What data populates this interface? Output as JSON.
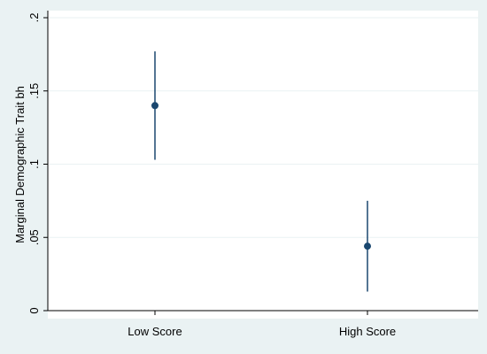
{
  "chart_data": {
    "type": "scatter",
    "categories": [
      "Low Score",
      "High Score"
    ],
    "series": [
      {
        "values": [
          0.14,
          0.044
        ],
        "ci_low": [
          0.103,
          0.013
        ],
        "ci_high": [
          0.177,
          0.075
        ]
      }
    ],
    "title": "",
    "xlabel": "",
    "ylabel": "Marginal Demographic Trait bh",
    "ylim": [
      0,
      0.2
    ],
    "yticks": [
      0,
      0.05,
      0.1,
      0.15,
      0.2
    ],
    "ytick_labels": [
      "0",
      ".05",
      ".1",
      ".15",
      ".2"
    ],
    "grid": true
  },
  "colors": {
    "background": "#eaf2f3",
    "plot_area": "#ffffff",
    "gridline": "#eaf2f3",
    "marker": "#1a476f",
    "axis": "#000000"
  }
}
